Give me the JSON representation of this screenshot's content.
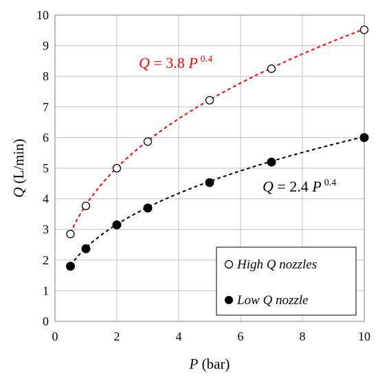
{
  "chart_data": {
    "type": "scatter",
    "x_axis": {
      "var": "P",
      "unit": "(bar)",
      "lim": [
        0,
        10
      ],
      "ticks": [
        0,
        2,
        4,
        6,
        8,
        10
      ]
    },
    "y_axis": {
      "var": "Q",
      "unit": "(L/min)",
      "lim": [
        0,
        10
      ],
      "ticks": [
        0,
        1,
        2,
        3,
        4,
        5,
        6,
        7,
        8,
        9,
        10
      ]
    },
    "grid": true,
    "legend_position": "bottom-right",
    "series": [
      {
        "name": "High Q nozzles",
        "marker": "open-circle",
        "x": [
          0.5,
          1,
          2,
          3,
          5,
          7,
          10
        ],
        "y": [
          2.85,
          3.77,
          5.0,
          5.87,
          7.22,
          8.25,
          9.52
        ],
        "fit": {
          "coef": 3.8,
          "exp": 0.4,
          "color": "#ff0000",
          "text_lhs": "Q",
          "text_mid": " = 3.8 ",
          "text_var": "P",
          "text_exp": "0.4"
        }
      },
      {
        "name": "Low Q nozzle",
        "marker": "filled-circle",
        "x": [
          0.5,
          1,
          2,
          3,
          5,
          7,
          10
        ],
        "y": [
          1.8,
          2.37,
          3.15,
          3.7,
          4.53,
          5.2,
          6.0
        ],
        "fit": {
          "coef": 2.4,
          "exp": 0.4,
          "color": "#000000",
          "text_lhs": "Q",
          "text_mid": " = 2.4 ",
          "text_var": "P",
          "text_exp": "0.4"
        }
      }
    ]
  }
}
